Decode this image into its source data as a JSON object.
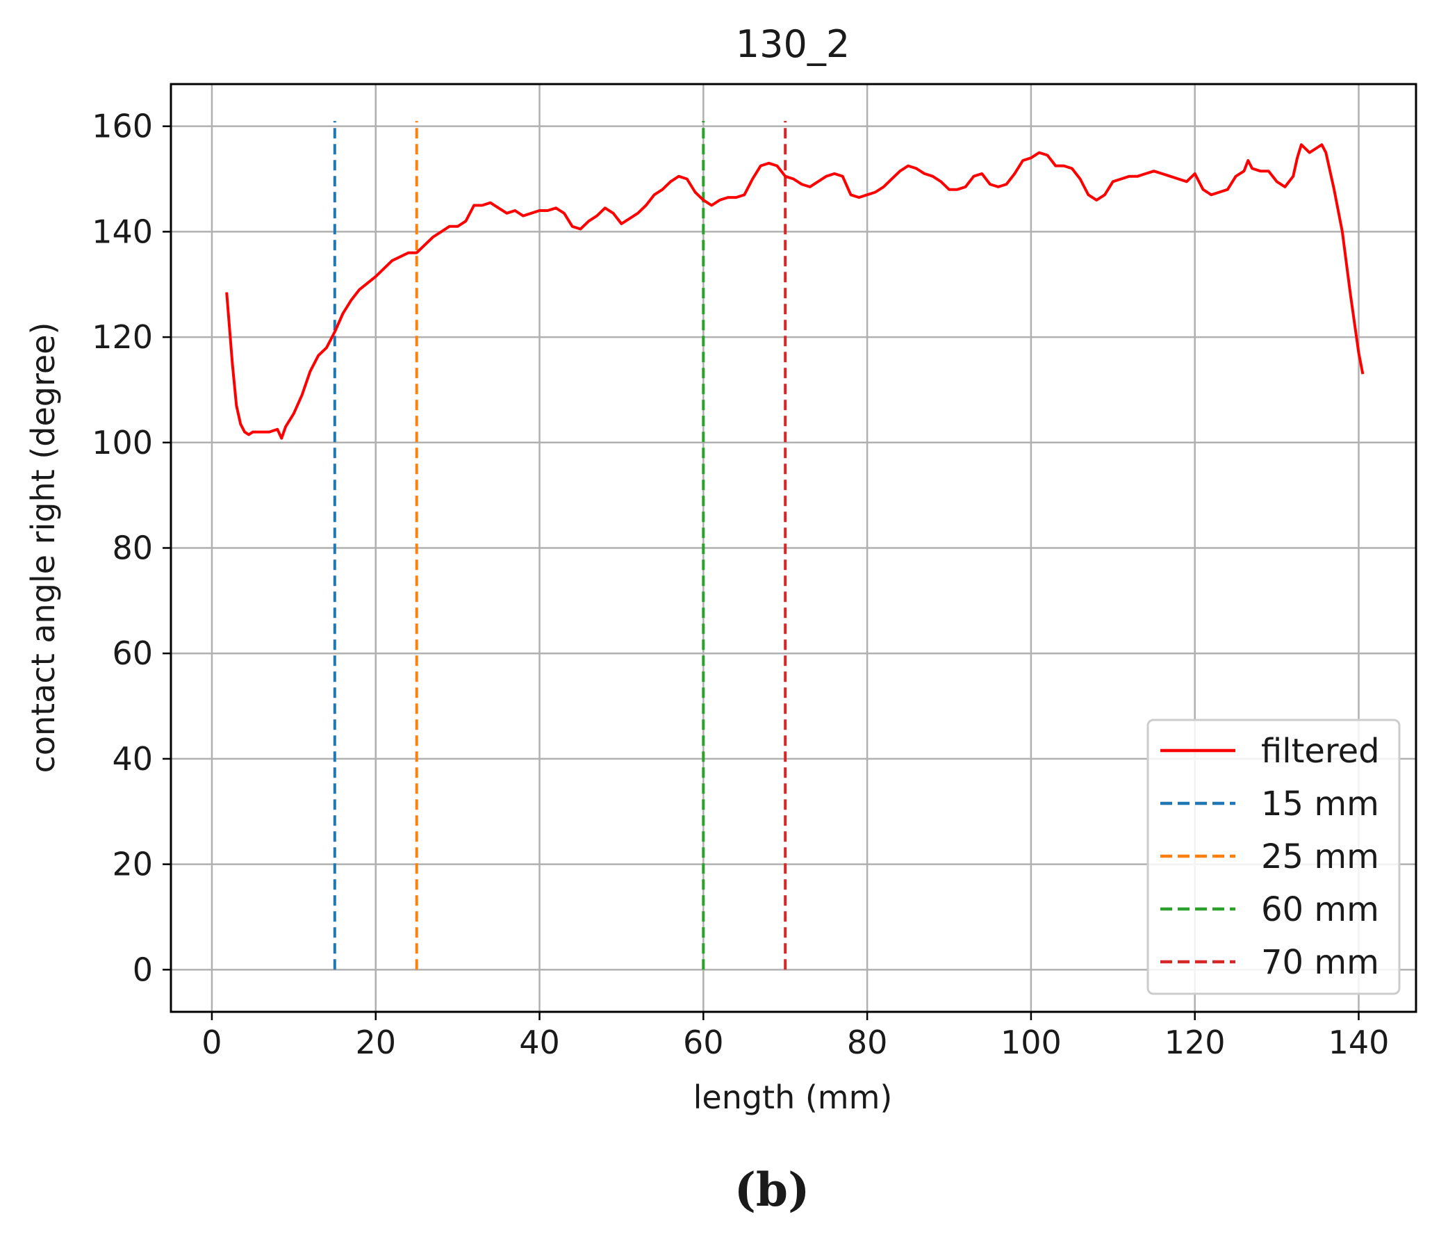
{
  "chart_data": {
    "type": "line",
    "title": "130_2",
    "xlabel": "length (mm)",
    "ylabel": "contact angle right (degree)",
    "xlim": [
      -5,
      147
    ],
    "ylim": [
      -8,
      168
    ],
    "xticks": [
      0,
      20,
      40,
      60,
      80,
      100,
      120,
      140
    ],
    "yticks": [
      0,
      20,
      40,
      60,
      80,
      100,
      120,
      140,
      160
    ],
    "grid": true,
    "legend_position": "lower-right",
    "series": [
      {
        "name": "filtered",
        "color": "#ff0000",
        "style": "solid",
        "x": [
          1.8,
          2.5,
          3,
          3.5,
          4,
          4.5,
          5,
          6,
          7,
          8,
          8.5,
          9,
          10,
          11,
          12,
          13,
          14,
          15,
          16,
          17,
          18,
          20,
          22,
          24,
          25,
          26,
          27,
          28,
          29,
          30,
          31,
          32,
          33,
          34,
          35,
          36,
          37,
          38,
          39,
          40,
          41,
          42,
          43,
          44,
          45,
          46,
          47,
          48,
          49,
          50,
          51,
          52,
          53,
          54,
          55,
          56,
          57,
          58,
          59,
          60,
          61,
          62,
          63,
          64,
          65,
          66,
          67,
          68,
          69,
          70,
          71,
          72,
          73,
          74,
          75,
          76,
          77,
          78,
          79,
          80,
          81,
          82,
          83,
          84,
          85,
          86,
          87,
          88,
          89,
          90,
          91,
          92,
          93,
          94,
          95,
          96,
          97,
          98,
          99,
          100,
          101,
          102,
          103,
          104,
          105,
          106,
          107,
          108,
          109,
          110,
          111,
          112,
          113,
          114,
          115,
          116,
          117,
          118,
          119,
          120,
          121,
          122,
          123,
          124,
          125,
          126,
          126.5,
          127,
          128,
          129,
          130,
          131,
          132,
          132.5,
          133,
          134,
          135,
          135.5,
          136,
          137,
          138,
          139,
          140,
          140.5
        ],
        "y": [
          128.5,
          115,
          107,
          103.5,
          102,
          101.5,
          102,
          102,
          102,
          102.5,
          100.8,
          103,
          105.5,
          109,
          113.5,
          116.5,
          118,
          121,
          124.5,
          127,
          129,
          131.5,
          134.5,
          136,
          136,
          137.5,
          139,
          140,
          141,
          141,
          142,
          145,
          145,
          145.5,
          144.5,
          143.5,
          144,
          143,
          143.5,
          144,
          144,
          144.5,
          143.5,
          141,
          140.5,
          142,
          143,
          144.5,
          143.5,
          141.5,
          142.5,
          143.5,
          145,
          147,
          148,
          149.5,
          150.5,
          150,
          147.5,
          146,
          145,
          146,
          146.5,
          146.5,
          147,
          150,
          152.5,
          153,
          152.5,
          150.5,
          150,
          149,
          148.5,
          149.5,
          150.5,
          151,
          150.5,
          147,
          146.5,
          147,
          147.5,
          148.5,
          150,
          151.5,
          152.5,
          152,
          151,
          150.5,
          149.5,
          148,
          148,
          148.5,
          150.5,
          151,
          149,
          148.5,
          149,
          151,
          153.5,
          154,
          155,
          154.5,
          152.5,
          152.5,
          152,
          150,
          147,
          146,
          147,
          149.5,
          150,
          150.5,
          150.5,
          151,
          151.5,
          151,
          150.5,
          150,
          149.5,
          151,
          148,
          147,
          147.5,
          148,
          150.5,
          151.5,
          153.5,
          152,
          151.5,
          151.5,
          149.5,
          148.5,
          150.5,
          154,
          156.5,
          155,
          156,
          156.5,
          155,
          148,
          140,
          128,
          117,
          113
        ]
      },
      {
        "name": "15 mm",
        "color": "#1f77b4",
        "style": "dashed",
        "x": [
          15,
          15
        ],
        "y": [
          0,
          161
        ]
      },
      {
        "name": "25 mm",
        "color": "#ff7f0e",
        "style": "dashed",
        "x": [
          25,
          25
        ],
        "y": [
          0,
          161
        ]
      },
      {
        "name": "60 mm",
        "color": "#2ca02c",
        "style": "dashed",
        "x": [
          60,
          60
        ],
        "y": [
          0,
          161
        ]
      },
      {
        "name": "70 mm",
        "color": "#d62728",
        "style": "dashed",
        "x": [
          70,
          70
        ],
        "y": [
          0,
          161
        ]
      }
    ]
  },
  "caption": "(b)"
}
